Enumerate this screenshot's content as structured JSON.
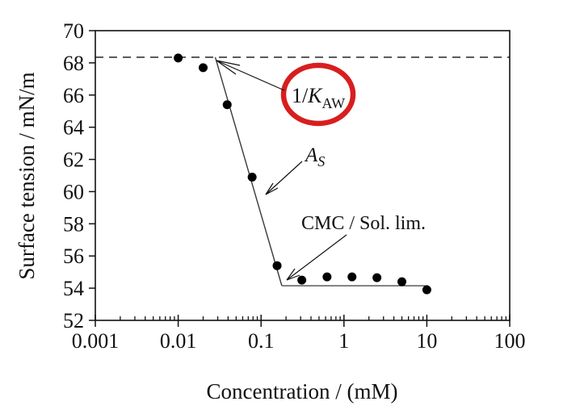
{
  "figure": {
    "background": "#ffffff",
    "ink_color": "#111111",
    "fit_line_color": "#3a3a3a",
    "plateau_line_color": "#5a5a5a",
    "accent_red": "#d81e1e"
  },
  "chart_data": {
    "type": "scatter",
    "title": "",
    "xlabel": "Concentration / (mM)",
    "ylabel": "Surface tension / mN/m",
    "x_scale": "log",
    "grid": false,
    "legend": false,
    "xlim": [
      0.001,
      100
    ],
    "ylim": [
      52,
      70
    ],
    "x_ticks": [
      0.001,
      0.01,
      0.1,
      1,
      10,
      100
    ],
    "x_tick_labels": [
      "0.001",
      "0.01",
      "0.1",
      "1",
      "10",
      "100"
    ],
    "y_ticks": [
      70,
      68,
      66,
      64,
      62,
      60,
      58,
      56,
      54,
      52
    ],
    "y_tick_labels": [
      "70",
      "68",
      "66",
      "64",
      "62",
      "60",
      "58",
      "56",
      "54",
      "52"
    ],
    "series": [
      {
        "name": "surface-tension-data",
        "marker": "filled-circle",
        "color": "#000000",
        "points": [
          [
            0.01,
            68.3
          ],
          [
            0.02,
            67.7
          ],
          [
            0.039,
            65.4
          ],
          [
            0.078,
            60.9
          ],
          [
            0.156,
            55.4
          ],
          [
            0.31,
            54.5
          ],
          [
            0.625,
            54.7
          ],
          [
            1.25,
            54.7
          ],
          [
            2.5,
            54.65
          ],
          [
            5,
            54.4
          ],
          [
            10,
            53.9
          ]
        ]
      }
    ],
    "lines": [
      {
        "name": "henry-limit-dashed-line",
        "style": "dashed",
        "y": 68.35,
        "from_x": 0.001,
        "to_x": 100
      },
      {
        "name": "slope-fit-line",
        "style": "solid",
        "from": [
          0.028,
          68.35
        ],
        "to": [
          0.178,
          54.15
        ]
      },
      {
        "name": "plateau-fit-line",
        "style": "solid",
        "from": [
          0.178,
          54.15
        ],
        "to": [
          10.3,
          54.15
        ]
      }
    ],
    "annotations": [
      {
        "id": "kaw",
        "label_prefix": "1/",
        "label_symbol": "K",
        "label_subscript": "AW",
        "circled": true,
        "circle_color": "#d81e1e",
        "points_at": "intersection of dashed line and slope"
      },
      {
        "id": "as",
        "label_symbol": "A",
        "label_subscript": "S",
        "circled": false,
        "points_at": "slope line"
      },
      {
        "id": "cmc",
        "label": "CMC / Sol. lim.",
        "circled": false,
        "points_at": "kink between slope and plateau"
      }
    ]
  }
}
